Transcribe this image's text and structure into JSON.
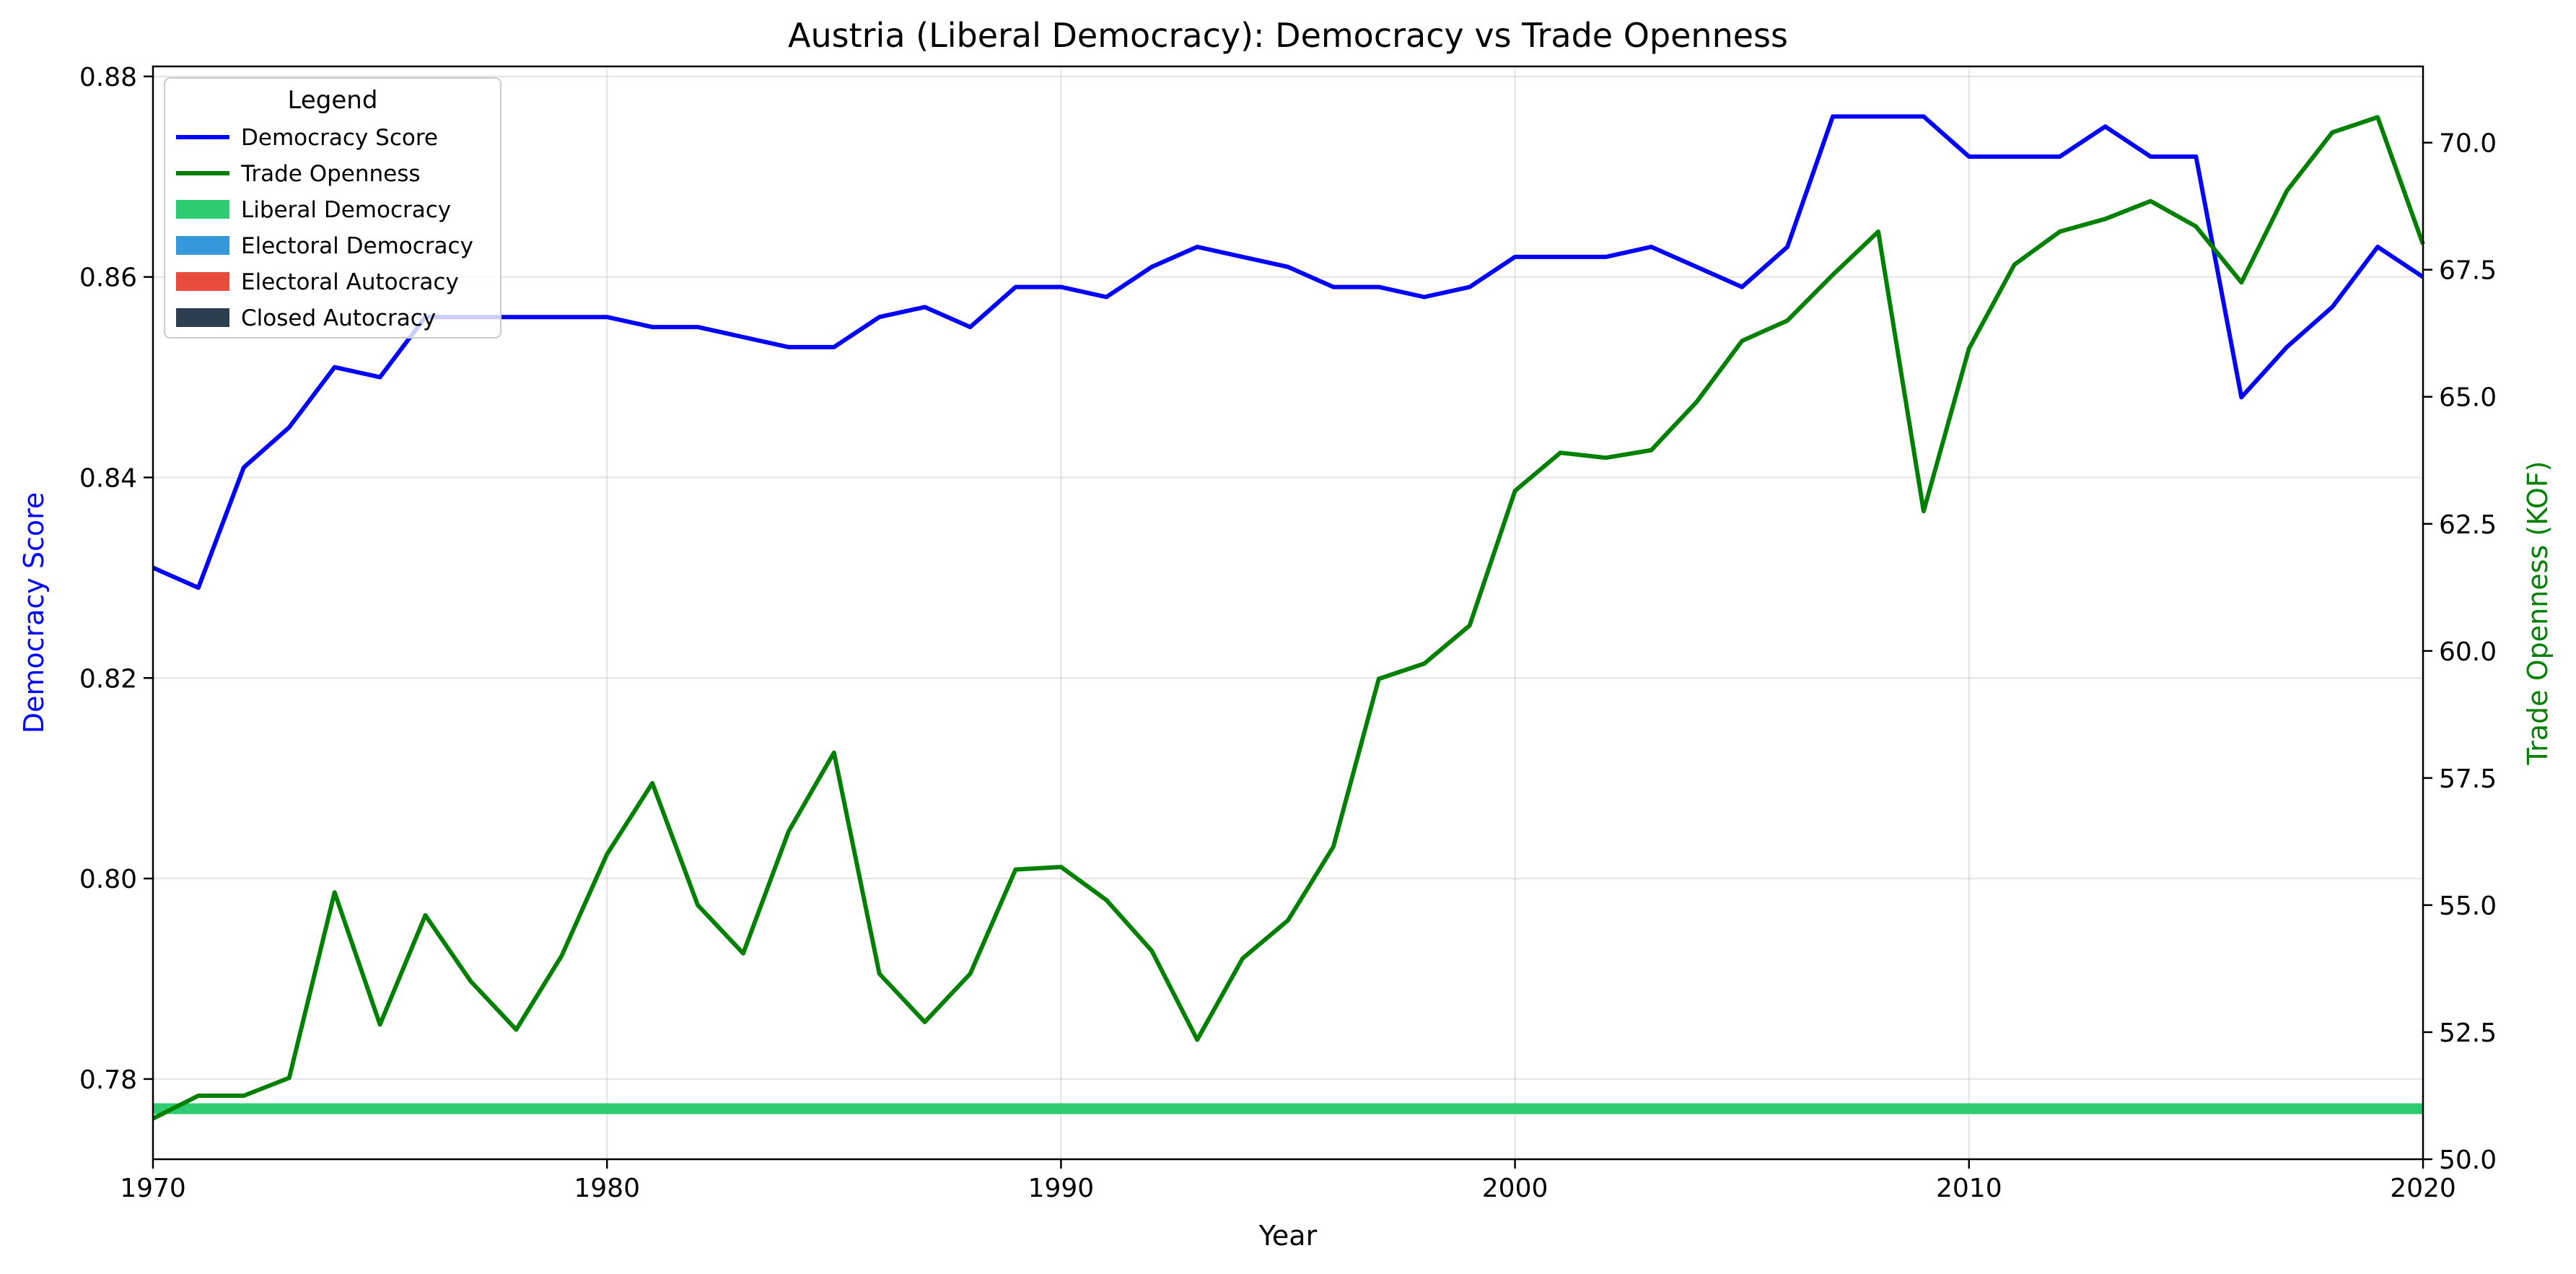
{
  "chart_data": {
    "type": "line",
    "title": "Austria (Liberal Democracy): Democracy vs Trade Openness",
    "xlabel": "Year",
    "ylabel_left": "Democracy Score",
    "ylabel_right": "Trade Openness (KOF)",
    "xlim": [
      1970,
      2020
    ],
    "ylim_left": [
      0.772,
      0.881
    ],
    "ylim_right": [
      50.0,
      71.5
    ],
    "x_ticks": [
      1970,
      1980,
      1990,
      2000,
      2010,
      2020
    ],
    "y_ticks_left": [
      "0.78",
      "0.80",
      "0.82",
      "0.84",
      "0.86",
      "0.88"
    ],
    "y_ticks_right": [
      "50.0",
      "52.5",
      "55.0",
      "57.5",
      "60.0",
      "62.5",
      "65.0",
      "67.5",
      "70.0"
    ],
    "grid": true,
    "legend": {
      "title": "Legend",
      "placement": "top-left",
      "entries": [
        {
          "label": "Democracy Score",
          "kind": "line",
          "color": "#0000ff"
        },
        {
          "label": "Trade Openness",
          "kind": "line",
          "color": "#008000"
        },
        {
          "label": "Liberal Democracy",
          "kind": "patch",
          "color": "#2ecc71"
        },
        {
          "label": "Electoral Democracy",
          "kind": "patch",
          "color": "#3498db"
        },
        {
          "label": "Electoral Autocracy",
          "kind": "patch",
          "color": "#e74c3c"
        },
        {
          "label": "Closed Autocracy",
          "kind": "patch",
          "color": "#2c3e50"
        }
      ]
    },
    "regime_band": {
      "label": "Liberal Democracy",
      "from": 1970,
      "to": 2020,
      "color": "#2ecc71"
    },
    "years": [
      1970,
      1971,
      1972,
      1973,
      1974,
      1975,
      1976,
      1977,
      1978,
      1979,
      1980,
      1981,
      1982,
      1983,
      1984,
      1985,
      1986,
      1987,
      1988,
      1989,
      1990,
      1991,
      1992,
      1993,
      1994,
      1995,
      1996,
      1997,
      1998,
      1999,
      2000,
      2001,
      2002,
      2003,
      2004,
      2005,
      2006,
      2007,
      2008,
      2009,
      2010,
      2011,
      2012,
      2013,
      2014,
      2015,
      2016,
      2017,
      2018,
      2019,
      2020
    ],
    "series": [
      {
        "name": "Democracy Score",
        "axis": "left",
        "color": "#0000ff",
        "values": [
          0.831,
          0.829,
          0.841,
          0.845,
          0.851,
          0.85,
          0.856,
          0.856,
          0.856,
          0.856,
          0.856,
          0.855,
          0.855,
          0.854,
          0.853,
          0.853,
          0.856,
          0.857,
          0.855,
          0.859,
          0.859,
          0.858,
          0.861,
          0.863,
          0.862,
          0.861,
          0.859,
          0.859,
          0.858,
          0.859,
          0.862,
          0.862,
          0.862,
          0.863,
          0.861,
          0.859,
          0.863,
          0.876,
          0.876,
          0.876,
          0.872,
          0.872,
          0.872,
          0.875,
          0.872,
          0.872,
          0.848,
          0.853,
          0.857,
          0.863,
          0.86
        ]
      },
      {
        "name": "Trade Openness",
        "axis": "right",
        "color": "#008000",
        "values": [
          50.8,
          51.25,
          51.25,
          51.6,
          55.25,
          52.65,
          54.8,
          53.5,
          52.55,
          54.0,
          56.0,
          57.4,
          55.0,
          54.05,
          56.45,
          58.0,
          53.65,
          52.7,
          53.65,
          55.7,
          55.75,
          55.1,
          54.1,
          52.35,
          53.95,
          54.7,
          56.15,
          59.45,
          59.75,
          60.5,
          63.15,
          63.9,
          63.8,
          63.95,
          64.9,
          66.1,
          66.5,
          67.4,
          68.25,
          62.75,
          65.95,
          67.6,
          68.25,
          68.5,
          68.85,
          68.35,
          67.25,
          69.05,
          70.2,
          70.5,
          68.0
        ]
      }
    ]
  }
}
